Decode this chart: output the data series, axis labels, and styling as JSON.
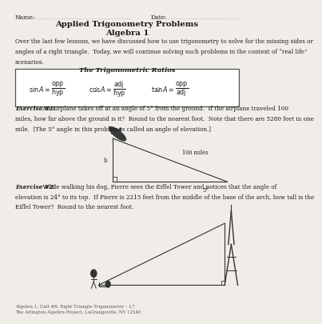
{
  "title1": "Applied Trigonometry Problems",
  "title2": "Algebra 1",
  "name_label": "Name:",
  "date_label": "Date:",
  "intro_line1": "Over the last few lessons, we have discussed how to use trigonometry to solve for the missing sides or",
  "intro_line2": "angles of a right triangle.  Today, we will continue solving such problems in the context of “real life”",
  "intro_line3": "scenarios.",
  "box_title": "The Trigonometric Ratios",
  "ex1_label": "Exercise #1:",
  "ex1_line1": "  An airplane takes off at an angle of 5° from the ground.  If the airplane traveled 100",
  "ex1_line2": "miles, how far above the ground is it?  Round to the nearest foot.  Note that there are 5280 feet in one",
  "ex1_line3": "mile.  [The 5° angle in this problem is called an angle of elevation.]",
  "ex2_label": "Exercise #2:",
  "ex2_line1": "  While walking his dog, Pierre sees the Eiffel Tower and notices that the angle of",
  "ex2_line2": "elevation is 24° to its top.  If Pierre is 2215 feet from the middle of the base of the arch, how tall is the",
  "ex2_line3": "Eiffel Tower?  Round to the nearest foot.",
  "footer1": "Algebra 1, Unit #8, Right Triangle Trigonometry – L7",
  "footer2": "The Arlington Algebra Project, LaGrangeville, NY 12540",
  "bg_color": "#f0ede8",
  "text_color": "#1a1a1a",
  "box_bg": "#ffffff",
  "box_border": "#555555"
}
